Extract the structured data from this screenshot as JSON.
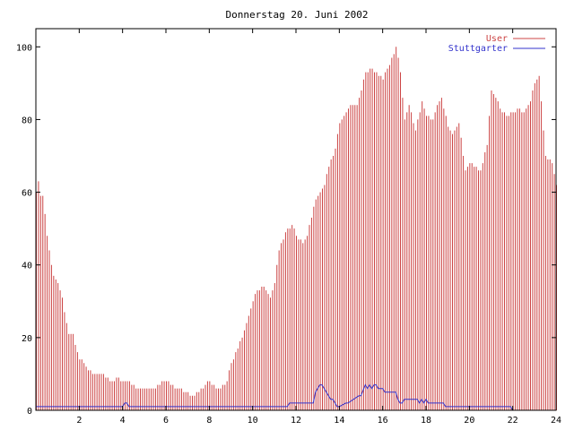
{
  "chart_data": {
    "type": "bar",
    "title": "Donnerstag 20. Juni 2002",
    "xlabel": "",
    "ylabel": "",
    "xlim": [
      0,
      24
    ],
    "ylim": [
      0,
      105
    ],
    "xticks": [
      2,
      4,
      6,
      8,
      10,
      12,
      14,
      16,
      18,
      20,
      22,
      24
    ],
    "xtick_labels": [
      "2",
      "4",
      "6",
      "8",
      "10",
      "12",
      "14",
      "16",
      "18",
      "20",
      "22",
      "24"
    ],
    "yticks": [
      0,
      20,
      40,
      60,
      80,
      100
    ],
    "ytick_labels": [
      "0",
      "20",
      "40",
      "60",
      "80",
      "100"
    ],
    "grid": false,
    "legend_position": "top-right",
    "x_step": 0.1,
    "series": [
      {
        "name": "User",
        "style": "impulses",
        "color": "#cc4444",
        "x_anchors": [
          0,
          0.1,
          0.2,
          0.3,
          0.5,
          0.6,
          0.7,
          0.8,
          1.0,
          1.2,
          1.3,
          1.5,
          1.6,
          1.7,
          1.8,
          2.0,
          2.2,
          2.3,
          2.5,
          2.6,
          2.8,
          3.0,
          3.2,
          3.5,
          3.8,
          4.0,
          4.3,
          4.6,
          4.9,
          5.2,
          5.5,
          5.8,
          6.0,
          6.3,
          6.5,
          7.0,
          7.2,
          7.5,
          7.8,
          8.0,
          8.3,
          8.5,
          8.8,
          9.0,
          9.3,
          9.5,
          9.8,
          10.0,
          10.2,
          10.5,
          10.8,
          11.0,
          11.2,
          11.5,
          11.8,
          12.0,
          12.3,
          12.5,
          12.8,
          13.0,
          13.3,
          13.5,
          13.8,
          14.0,
          14.3,
          14.5,
          14.8,
          15.0,
          15.2,
          15.5,
          15.8,
          16.0,
          16.2,
          16.5,
          16.6,
          16.8,
          17.0,
          17.2,
          17.5,
          17.8,
          18.0,
          18.3,
          18.5,
          18.7,
          19.0,
          19.2,
          19.5,
          19.8,
          20.0,
          20.5,
          20.8,
          21.0,
          21.3,
          21.5,
          21.8,
          22.0,
          22.3,
          22.5,
          22.8,
          23.0,
          23.2,
          23.5,
          23.8,
          24.0
        ],
        "values": [
          60,
          63,
          59,
          59,
          48,
          44,
          40,
          37,
          35,
          31,
          27,
          21,
          21,
          21,
          18,
          14,
          13,
          12,
          11,
          10,
          10,
          10,
          9,
          8,
          9,
          8,
          8,
          6,
          6,
          6,
          6,
          8,
          8,
          7,
          6,
          5,
          4,
          5,
          7,
          8,
          6,
          6,
          8,
          13,
          17,
          20,
          26,
          30,
          33,
          34,
          31,
          35,
          44,
          49,
          51,
          48,
          46,
          48,
          56,
          59,
          62,
          67,
          72,
          79,
          82,
          84,
          84,
          88,
          93,
          94,
          92,
          91,
          94,
          98,
          100,
          93,
          80,
          84,
          77,
          85,
          81,
          80,
          84,
          86,
          78,
          76,
          79,
          66,
          68,
          66,
          73,
          88,
          85,
          82,
          81,
          82,
          83,
          82,
          85,
          90,
          92,
          70,
          68,
          62
        ]
      },
      {
        "name": "Stuttgarter",
        "style": "lines",
        "color": "#3333cc",
        "x": [
          0,
          4.0,
          4.1,
          4.2,
          4.3,
          11.6,
          11.7,
          12.8,
          12.9,
          13.1,
          13.2,
          13.6,
          13.7,
          13.9,
          14.0,
          14.3,
          14.4,
          14.9,
          15.0,
          15.2,
          15.3,
          15.4,
          15.5,
          15.6,
          15.7,
          15.8,
          16.0,
          16.1,
          16.6,
          16.7,
          16.8,
          16.9,
          17.0,
          17.1,
          17.6,
          17.7,
          17.8,
          17.9,
          18.0,
          18.1,
          18.2,
          18.3,
          18.8,
          18.9,
          20.8,
          20.9,
          21.9,
          22.0,
          24.0
        ],
        "values": [
          1,
          1,
          2,
          2,
          1,
          1,
          2,
          2,
          5,
          7,
          7,
          3,
          3,
          1,
          1,
          2,
          2,
          4,
          4,
          7,
          6,
          7,
          6,
          7,
          7,
          6,
          6,
          5,
          5,
          3,
          2,
          2,
          3,
          3,
          3,
          2,
          3,
          2,
          3,
          2,
          2,
          2,
          2,
          1,
          1,
          1,
          1,
          0,
          0
        ]
      }
    ]
  }
}
